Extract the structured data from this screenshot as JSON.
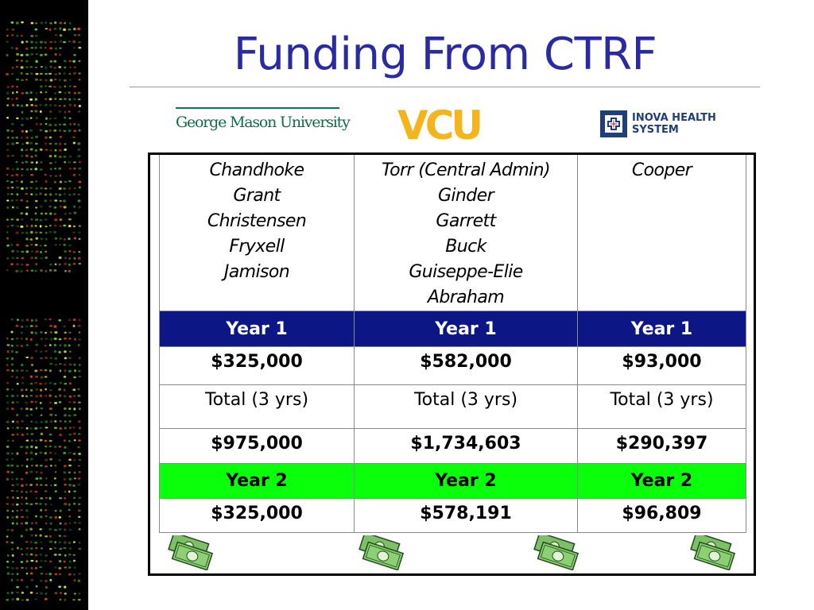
{
  "slide": {
    "title": "Funding From CTRF"
  },
  "logos": {
    "gmu": "George Mason University",
    "vcu": "VCU",
    "inova_line1": "INOVA HEALTH",
    "inova_line2": "SYSTEM",
    "gmu_color": "#0b6e46",
    "vcu_color": "#f3b51b",
    "inova_color": "#1f3f7a"
  },
  "table": {
    "columns": [
      {
        "names": [
          "Chandhoke",
          "Grant",
          "Christensen",
          "Fryxell",
          "Jamison"
        ],
        "year1_label": "Year 1",
        "year1_amount": "$325,000",
        "total_label": "Total (3 yrs)",
        "total_amount": "$975,000",
        "year2_label": "Year 2",
        "year2_amount": "$325,000"
      },
      {
        "names": [
          "Torr (Central Admin)",
          "Ginder",
          "Garrett",
          "Buck",
          "Guiseppe-Elie",
          "Abraham"
        ],
        "year1_label": "Year 1",
        "year1_amount": "$582,000",
        "total_label": "Total (3 yrs)",
        "total_amount": "$1,734,603",
        "year2_label": "Year 2",
        "year2_amount": "$578,191"
      },
      {
        "names": [
          "Cooper"
        ],
        "year1_label": "Year 1",
        "year1_amount": "$93,000",
        "total_label": "Total (3 yrs)",
        "total_amount": "$290,397",
        "year2_label": "Year 2",
        "year2_amount": "$96,809"
      }
    ]
  },
  "colors": {
    "title": "#2a2aa2",
    "year1_header": "#0c1785",
    "year2_header": "#0aff0a",
    "frame": "#000000"
  },
  "icons": [
    "microarray-sidebar",
    "money-icon"
  ]
}
